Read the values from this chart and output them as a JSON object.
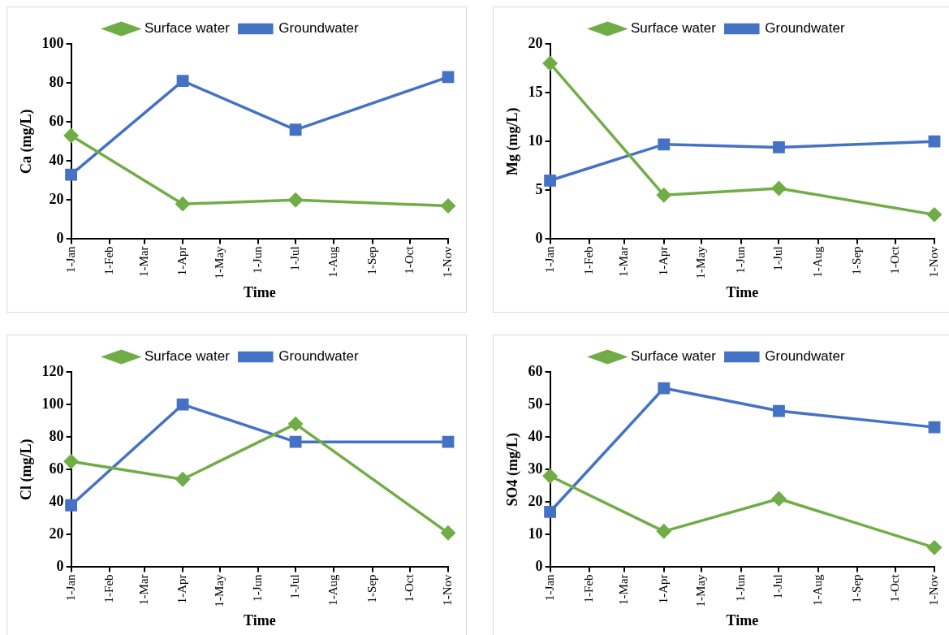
{
  "chart_data": [
    {
      "type": "line",
      "xlabel": "Time",
      "ylabel": "Ca (mg/L)",
      "x": [
        "--01-01",
        "--04-01",
        "--07-01",
        "--11-01"
      ],
      "xlim": [
        "--01-01",
        "--11-01"
      ],
      "xticks": [
        {
          "value": "--01-01",
          "label": "1-Jan"
        },
        {
          "value": "--02-01",
          "label": "1-Feb"
        },
        {
          "value": "--03-01",
          "label": "1-Mar"
        },
        {
          "value": "--04-01",
          "label": "1-Apr"
        },
        {
          "value": "--05-01",
          "label": "1-May"
        },
        {
          "value": "--06-01",
          "label": "1-Jun"
        },
        {
          "value": "--07-01",
          "label": "1-Jul"
        },
        {
          "value": "--08-01",
          "label": "1-Aug"
        },
        {
          "value": "--09-01",
          "label": "1-Sep"
        },
        {
          "value": "--10-01",
          "label": "1-Oct"
        },
        {
          "value": "--11-01",
          "label": "1-Nov"
        }
      ],
      "ylim": [
        0,
        100
      ],
      "yticks": [
        0,
        20,
        40,
        60,
        80,
        100
      ],
      "grid": false,
      "legend": "top",
      "series": [
        {
          "name": "Surface water",
          "color": "#70ad47",
          "marker": "diamond",
          "values": [
            53,
            18,
            20,
            17
          ]
        },
        {
          "name": "Groundwater",
          "color": "#4472c4",
          "marker": "square",
          "values": [
            33,
            81,
            56,
            83
          ]
        }
      ]
    },
    {
      "type": "line",
      "xlabel": "Time",
      "ylabel": "Mg (mg/L)",
      "x": [
        "--01-01",
        "--04-01",
        "--07-01",
        "--11-01"
      ],
      "xlim": [
        "--01-01",
        "--11-01"
      ],
      "xticks": [
        {
          "value": "--01-01",
          "label": "1-Jan"
        },
        {
          "value": "--02-01",
          "label": "1-Feb"
        },
        {
          "value": "--03-01",
          "label": "1-Mar"
        },
        {
          "value": "--04-01",
          "label": "1-Apr"
        },
        {
          "value": "--05-01",
          "label": "1-May"
        },
        {
          "value": "--06-01",
          "label": "1-Jun"
        },
        {
          "value": "--07-01",
          "label": "1-Jul"
        },
        {
          "value": "--08-01",
          "label": "1-Aug"
        },
        {
          "value": "--09-01",
          "label": "1-Sep"
        },
        {
          "value": "--10-01",
          "label": "1-Oct"
        },
        {
          "value": "--11-01",
          "label": "1-Nov"
        }
      ],
      "ylim": [
        0,
        20
      ],
      "yticks": [
        0,
        5,
        10,
        15,
        20
      ],
      "grid": false,
      "legend": "top",
      "series": [
        {
          "name": "Surface water",
          "color": "#70ad47",
          "marker": "diamond",
          "values": [
            18,
            4.5,
            5.2,
            2.5
          ]
        },
        {
          "name": "Groundwater",
          "color": "#4472c4",
          "marker": "square",
          "values": [
            6,
            9.7,
            9.4,
            10
          ]
        }
      ]
    },
    {
      "type": "line",
      "xlabel": "Time",
      "ylabel": "Cl (mg/L)",
      "x": [
        "--01-01",
        "--04-01",
        "--07-01",
        "--11-01"
      ],
      "xlim": [
        "--01-01",
        "--11-01"
      ],
      "xticks": [
        {
          "value": "--01-01",
          "label": "1-Jan"
        },
        {
          "value": "--02-01",
          "label": "1-Feb"
        },
        {
          "value": "--03-01",
          "label": "1-Mar"
        },
        {
          "value": "--04-01",
          "label": "1-Apr"
        },
        {
          "value": "--05-01",
          "label": "1-May"
        },
        {
          "value": "--06-01",
          "label": "1-Jun"
        },
        {
          "value": "--07-01",
          "label": "1-Jul"
        },
        {
          "value": "--08-01",
          "label": "1-Aug"
        },
        {
          "value": "--09-01",
          "label": "1-Sep"
        },
        {
          "value": "--10-01",
          "label": "1-Oct"
        },
        {
          "value": "--11-01",
          "label": "1-Nov"
        }
      ],
      "ylim": [
        0,
        120
      ],
      "yticks": [
        0,
        20,
        40,
        60,
        80,
        100,
        120
      ],
      "grid": false,
      "legend": "top",
      "series": [
        {
          "name": "Surface water",
          "color": "#70ad47",
          "marker": "diamond",
          "values": [
            65,
            54,
            88,
            21
          ]
        },
        {
          "name": "Groundwater",
          "color": "#4472c4",
          "marker": "square",
          "values": [
            38,
            100,
            77,
            77
          ]
        }
      ]
    },
    {
      "type": "line",
      "xlabel": "Time",
      "ylabel": "SO4 (mg/L)",
      "x": [
        "--01-01",
        "--04-01",
        "--07-01",
        "--11-01"
      ],
      "xlim": [
        "--01-01",
        "--11-01"
      ],
      "xticks": [
        {
          "value": "--01-01",
          "label": "1-Jan"
        },
        {
          "value": "--02-01",
          "label": "1-Feb"
        },
        {
          "value": "--03-01",
          "label": "1-Mar"
        },
        {
          "value": "--04-01",
          "label": "1-Apr"
        },
        {
          "value": "--05-01",
          "label": "1-May"
        },
        {
          "value": "--06-01",
          "label": "1-Jun"
        },
        {
          "value": "--07-01",
          "label": "1-Jul"
        },
        {
          "value": "--08-01",
          "label": "1-Aug"
        },
        {
          "value": "--09-01",
          "label": "1-Sep"
        },
        {
          "value": "--10-01",
          "label": "1-Oct"
        },
        {
          "value": "--11-01",
          "label": "1-Nov"
        }
      ],
      "ylim": [
        0,
        60
      ],
      "yticks": [
        0,
        10,
        20,
        30,
        40,
        50,
        60
      ],
      "grid": false,
      "legend": "top",
      "series": [
        {
          "name": "Surface water",
          "color": "#70ad47",
          "marker": "diamond",
          "values": [
            28,
            11,
            21,
            6
          ]
        },
        {
          "name": "Groundwater",
          "color": "#4472c4",
          "marker": "square",
          "values": [
            17,
            55,
            48,
            43
          ]
        }
      ]
    }
  ]
}
